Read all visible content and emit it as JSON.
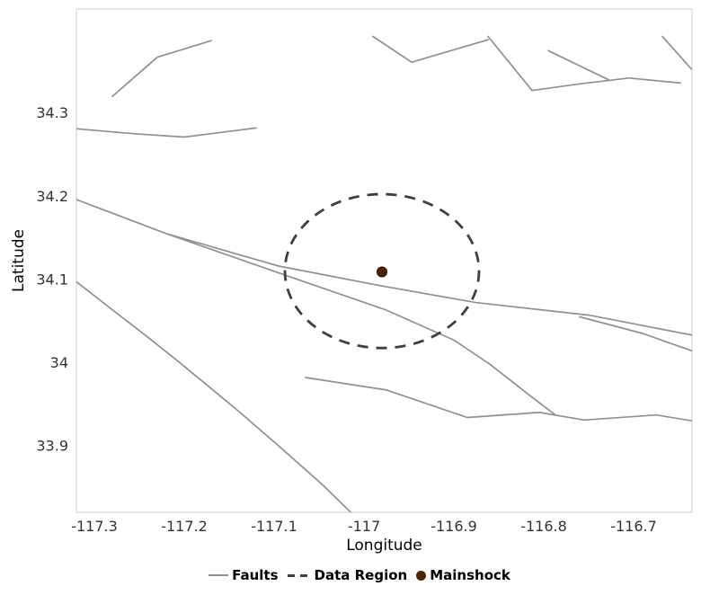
{
  "figure": {
    "xlabel": "Longitude",
    "ylabel": "Latitude"
  },
  "legend": {
    "items": [
      {
        "label": "Faults"
      },
      {
        "label": "Data Region"
      },
      {
        "label": "Mainshock"
      }
    ]
  },
  "chart_data": {
    "type": "line",
    "title": "",
    "xlabel": "Longitude",
    "ylabel": "Latitude",
    "xlim": [
      -117.32,
      -116.635
    ],
    "ylim": [
      33.82,
      34.425
    ],
    "x_ticks": [
      -117.3,
      -117.2,
      -117.1,
      -117.0,
      -116.9,
      -116.8,
      -116.7
    ],
    "x_tick_labels": [
      "-117.3",
      "-117.2",
      "-117.1",
      "-117",
      "-116.9",
      "-116.8",
      "-116.7"
    ],
    "y_ticks": [
      34.3,
      34.2,
      34.1,
      34.0,
      33.9
    ],
    "y_tick_labels": [
      "34.3",
      "34.2",
      "34.1",
      "34",
      "33.9"
    ],
    "grid": false,
    "legend_position": "bottom",
    "legend_entries": [
      "Faults",
      "Data Region",
      "Mainshock"
    ],
    "faults": [
      [
        [
          -117.28,
          34.32
        ],
        [
          -117.23,
          34.367
        ],
        [
          -117.17,
          34.387
        ]
      ],
      [
        [
          -116.99,
          34.392
        ],
        [
          -116.947,
          34.361
        ],
        [
          -116.862,
          34.388
        ]
      ],
      [
        [
          -116.862,
          34.392
        ],
        [
          -116.813,
          34.327
        ],
        [
          -116.76,
          34.335
        ],
        [
          -116.705,
          34.342
        ],
        [
          -116.648,
          34.336
        ]
      ],
      [
        [
          -116.795,
          34.375
        ],
        [
          -116.728,
          34.34
        ]
      ],
      [
        [
          -116.668,
          34.392
        ],
        [
          -116.635,
          34.352
        ]
      ],
      [
        [
          -117.32,
          34.281
        ],
        [
          -117.255,
          34.275
        ],
        [
          -117.2,
          34.271
        ],
        [
          -117.12,
          34.282
        ]
      ],
      [
        [
          -117.32,
          34.196
        ],
        [
          -117.22,
          34.155
        ],
        [
          -117.095,
          34.116
        ],
        [
          -116.98,
          34.092
        ],
        [
          -116.875,
          34.072
        ],
        [
          -116.75,
          34.057
        ],
        [
          -116.635,
          34.033
        ]
      ],
      [
        [
          -116.76,
          34.055
        ],
        [
          -116.69,
          34.035
        ],
        [
          -116.635,
          34.014
        ]
      ],
      [
        [
          -117.32,
          34.097
        ],
        [
          -117.24,
          34.03
        ],
        [
          -117.205,
          34.0
        ],
        [
          -117.14,
          33.942
        ],
        [
          -117.095,
          33.9
        ],
        [
          -117.045,
          33.852
        ],
        [
          -117.01,
          33.815
        ]
      ],
      [
        [
          -117.22,
          34.155
        ],
        [
          -117.09,
          34.106
        ],
        [
          -116.975,
          34.063
        ],
        [
          -116.9,
          34.027
        ],
        [
          -116.86,
          33.998
        ],
        [
          -116.815,
          33.96
        ],
        [
          -116.787,
          33.937
        ]
      ],
      [
        [
          -117.065,
          33.982
        ],
        [
          -116.975,
          33.967
        ],
        [
          -116.885,
          33.934
        ],
        [
          -116.805,
          33.94
        ],
        [
          -116.755,
          33.931
        ],
        [
          -116.675,
          33.937
        ],
        [
          -116.635,
          33.93
        ]
      ]
    ],
    "data_region": {
      "center": [
        -116.98,
        34.11
      ],
      "rx_deg": 0.108,
      "ry_deg": 0.0925
    },
    "mainshock": {
      "lon": -116.98,
      "lat": 34.109
    },
    "colors": {
      "fault": "#909090",
      "data_region": "#3f3f3f",
      "mainshock": "#4d2600",
      "panel_border": "#d4d4d4",
      "tick_label": "#333333"
    }
  }
}
